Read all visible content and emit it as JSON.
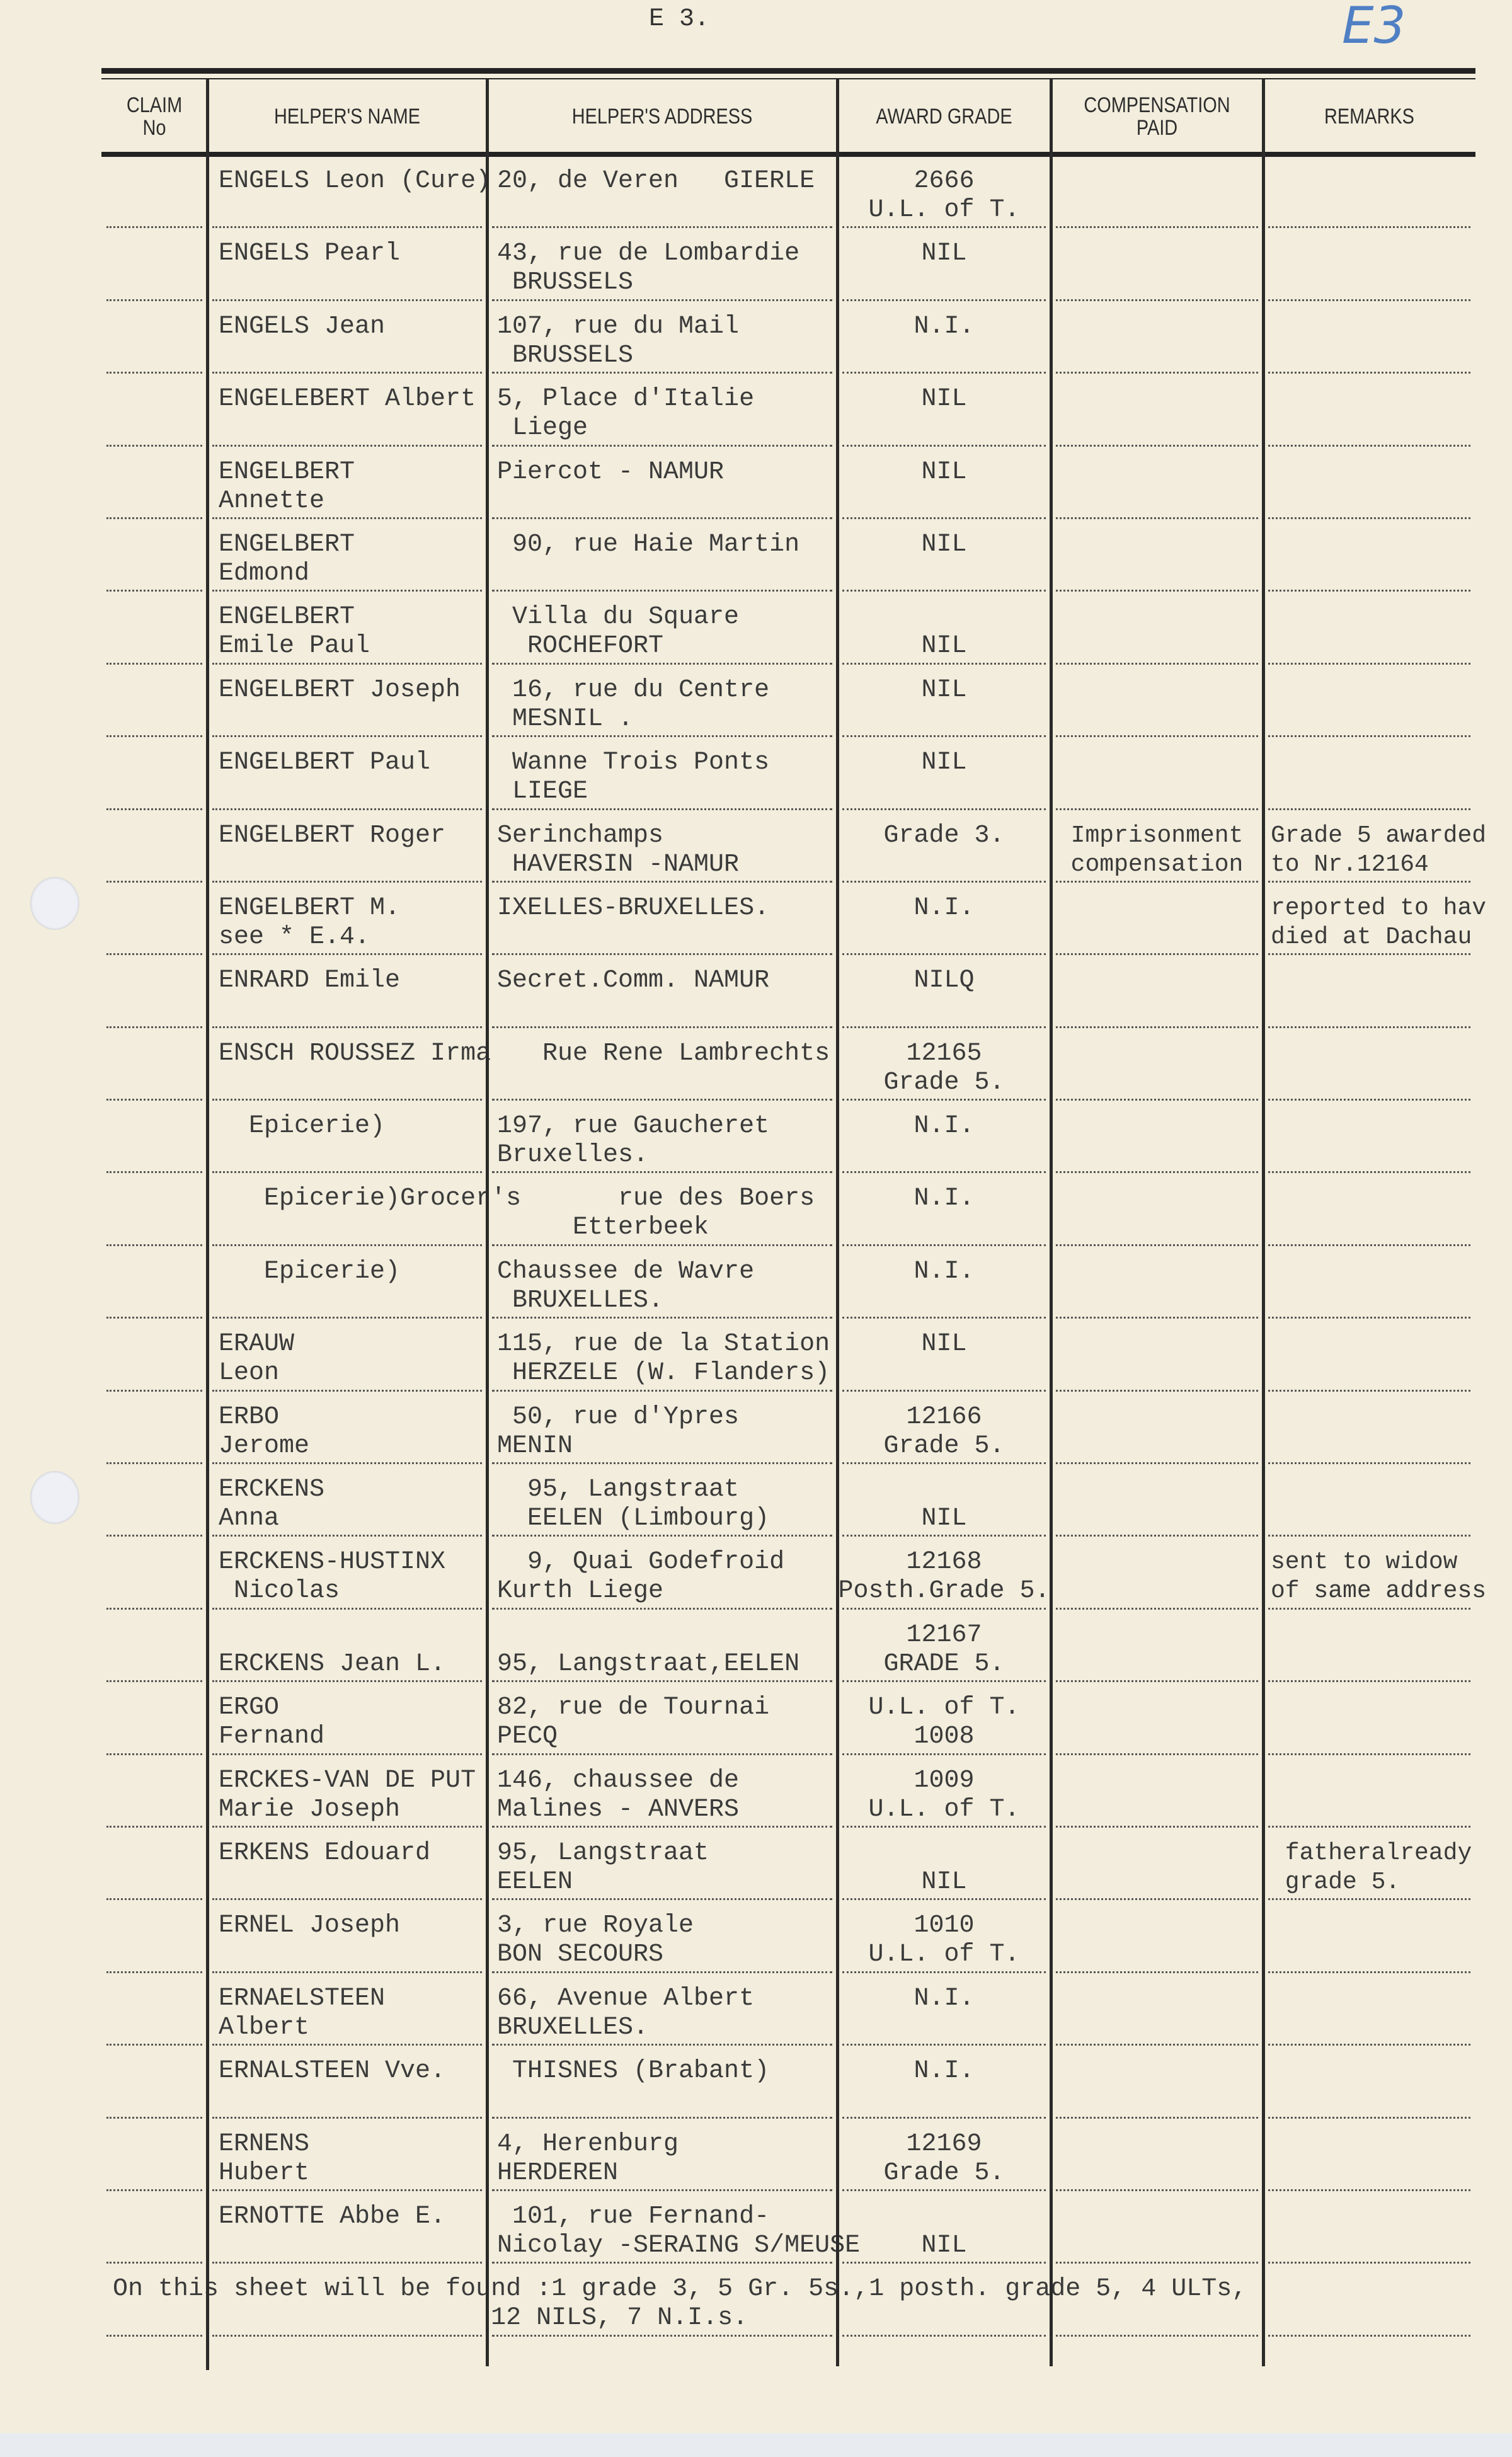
{
  "sheet_code": "E 3.",
  "handwritten_code": "E3",
  "colors": {
    "paper": "#f2eddc",
    "ink": "#3a3a3a",
    "handwriting": "#4f7fc4"
  },
  "headers": [
    "CLAIM\nNo",
    "HELPER'S NAME",
    "HELPER'S ADDRESS",
    "AWARD GRADE",
    "COMPENSATION\nPAID",
    "REMARKS"
  ],
  "rows": [
    {
      "claim": [],
      "name": [
        "ENGELS Leon (Cure)"
      ],
      "address": [
        "20, de Veren   GIERLE"
      ],
      "award": [
        "2666",
        "U.L. of T."
      ],
      "compensation": [],
      "remarks": []
    },
    {
      "claim": [],
      "name": [
        "ENGELS Pearl"
      ],
      "address": [
        "43, rue de Lombardie",
        " BRUSSELS"
      ],
      "award": [
        "NIL"
      ],
      "compensation": [],
      "remarks": []
    },
    {
      "claim": [],
      "name": [
        "ENGELS Jean"
      ],
      "address": [
        "107, rue du Mail",
        " BRUSSELS"
      ],
      "award": [
        "N.I."
      ],
      "compensation": [],
      "remarks": []
    },
    {
      "claim": [],
      "name": [
        "ENGELEBERT Albert"
      ],
      "address": [
        "5, Place d'Italie",
        " Liege"
      ],
      "award": [
        "NIL"
      ],
      "compensation": [],
      "remarks": []
    },
    {
      "claim": [],
      "name": [
        "ENGELBERT",
        "Annette"
      ],
      "address": [
        "Piercot - NAMUR"
      ],
      "award": [
        "NIL"
      ],
      "compensation": [],
      "remarks": []
    },
    {
      "claim": [],
      "name": [
        "ENGELBERT",
        "Edmond"
      ],
      "address": [
        " 90, rue Haie Martin"
      ],
      "award": [
        "NIL"
      ],
      "compensation": [],
      "remarks": []
    },
    {
      "claim": [],
      "name": [
        "ENGELBERT",
        "Emile Paul"
      ],
      "address": [
        " Villa du Square",
        "  ROCHEFORT"
      ],
      "award": [
        "",
        "NIL"
      ],
      "compensation": [],
      "remarks": []
    },
    {
      "claim": [],
      "name": [
        "ENGELBERT Joseph"
      ],
      "address": [
        " 16, rue du Centre",
        " MESNIL ."
      ],
      "award": [
        "NIL"
      ],
      "compensation": [],
      "remarks": []
    },
    {
      "claim": [],
      "name": [
        "ENGELBERT Paul"
      ],
      "address": [
        " Wanne Trois Ponts",
        " LIEGE"
      ],
      "award": [
        "NIL"
      ],
      "compensation": [],
      "remarks": []
    },
    {
      "claim": [],
      "name": [
        "ENGELBERT Roger"
      ],
      "address": [
        "Serinchamps",
        " HAVERSIN -NAMUR"
      ],
      "award": [
        "Grade 3."
      ],
      "compensation": [
        "Imprisonment",
        "compensation"
      ],
      "remarks": [
        "Grade 5 awarded",
        "to Nr.12164"
      ]
    },
    {
      "claim": [],
      "name": [
        "ENGELBERT M.",
        "see * E.4."
      ],
      "address": [
        "IXELLES-BRUXELLES."
      ],
      "award": [
        "N.I."
      ],
      "compensation": [],
      "remarks": [
        "reported to hav",
        "died at Dachau"
      ]
    },
    {
      "claim": [],
      "name": [
        "ENRARD Emile"
      ],
      "address": [
        "Secret.Comm. NAMUR"
      ],
      "award": [
        "NILQ"
      ],
      "compensation": [],
      "remarks": []
    },
    {
      "claim": [],
      "name": [
        "ENSCH ROUSSEZ Irma"
      ],
      "address": [
        "   Rue Rene Lambrechts"
      ],
      "award": [
        "12165",
        "Grade 5."
      ],
      "compensation": [],
      "remarks": []
    },
    {
      "claim": [],
      "name": [
        "  Epicerie)"
      ],
      "address": [
        "197, rue Gaucheret",
        "Bruxelles."
      ],
      "award": [
        "N.I."
      ],
      "compensation": [],
      "remarks": []
    },
    {
      "claim": [],
      "name": [
        "   Epicerie)Grocer's"
      ],
      "address": [
        "        rue des Boers",
        "     Etterbeek"
      ],
      "award": [
        "N.I."
      ],
      "compensation": [],
      "remarks": []
    },
    {
      "claim": [],
      "name": [
        "   Epicerie)"
      ],
      "address": [
        "Chaussee de Wavre",
        " BRUXELLES."
      ],
      "award": [
        "N.I."
      ],
      "compensation": [],
      "remarks": []
    },
    {
      "claim": [],
      "name": [
        "ERAUW",
        "Leon"
      ],
      "address": [
        "115, rue de la Station",
        " HERZELE (W. Flanders)"
      ],
      "award": [
        "NIL"
      ],
      "compensation": [],
      "remarks": []
    },
    {
      "claim": [],
      "name": [
        "ERBO",
        "Jerome"
      ],
      "address": [
        " 50, rue d'Ypres",
        "MENIN"
      ],
      "award": [
        "12166",
        "Grade 5."
      ],
      "compensation": [],
      "remarks": []
    },
    {
      "claim": [],
      "name": [
        "ERCKENS",
        "Anna"
      ],
      "address": [
        "  95, Langstraat",
        "  EELEN (Limbourg)"
      ],
      "award": [
        "",
        "NIL"
      ],
      "compensation": [],
      "remarks": []
    },
    {
      "claim": [],
      "name": [
        "ERCKENS-HUSTINX",
        " Nicolas"
      ],
      "address": [
        "  9, Quai Godefroid",
        "Kurth Liege"
      ],
      "award": [
        "12168",
        "Posth.Grade 5."
      ],
      "compensation": [],
      "remarks": [
        "sent to widow",
        "of same address"
      ]
    },
    {
      "claim": [],
      "name": [
        "",
        "ERCKENS Jean L."
      ],
      "address": [
        "",
        "95, Langstraat,EELEN"
      ],
      "award": [
        "12167",
        "GRADE 5."
      ],
      "compensation": [],
      "remarks": []
    },
    {
      "claim": [],
      "name": [
        "ERGO",
        "Fernand"
      ],
      "address": [
        "82, rue de Tournai",
        "PECQ"
      ],
      "award": [
        "U.L. of T.",
        "1008"
      ],
      "compensation": [],
      "remarks": []
    },
    {
      "claim": [],
      "name": [
        "ERCKES-VAN DE PUT",
        "Marie Joseph"
      ],
      "address": [
        "146, chaussee de",
        "Malines - ANVERS"
      ],
      "award": [
        "1009",
        "U.L. of T."
      ],
      "compensation": [],
      "remarks": []
    },
    {
      "claim": [],
      "name": [
        "ERKENS Edouard"
      ],
      "address": [
        "95, Langstraat",
        "EELEN"
      ],
      "award": [
        "",
        "NIL"
      ],
      "compensation": [],
      "remarks": [
        " fatheralready",
        " grade 5."
      ]
    },
    {
      "claim": [],
      "name": [
        "ERNEL Joseph"
      ],
      "address": [
        "3, rue Royale",
        "BON SECOURS"
      ],
      "award": [
        "1010",
        "U.L. of T."
      ],
      "compensation": [],
      "remarks": []
    },
    {
      "claim": [],
      "name": [
        "ERNAELSTEEN",
        "Albert"
      ],
      "address": [
        "66, Avenue Albert",
        "BRUXELLES."
      ],
      "award": [
        "N.I."
      ],
      "compensation": [],
      "remarks": []
    },
    {
      "claim": [],
      "name": [
        "ERNALSTEEN Vve."
      ],
      "address": [
        " THISNES (Brabant)"
      ],
      "award": [
        "N.I."
      ],
      "compensation": [],
      "remarks": []
    },
    {
      "claim": [],
      "name": [
        "ERNENS",
        "Hubert"
      ],
      "address": [
        "4, Herenburg",
        "HERDEREN"
      ],
      "award": [
        "12169",
        "Grade 5."
      ],
      "compensation": [],
      "remarks": []
    },
    {
      "claim": [],
      "name": [
        "ERNOTTE Abbe E."
      ],
      "address": [
        " 101, rue Fernand-",
        "Nicolay -SERAING S/MEUSE"
      ],
      "award": [
        "",
        "NIL"
      ],
      "compensation": [],
      "remarks": []
    }
  ],
  "summary": [
    "On this sheet will be found :1 grade 3, 5 Gr. 5s.,1 posth. grade 5, 4 ULTs,",
    "                         12 NILS, 7 N.I.s."
  ]
}
